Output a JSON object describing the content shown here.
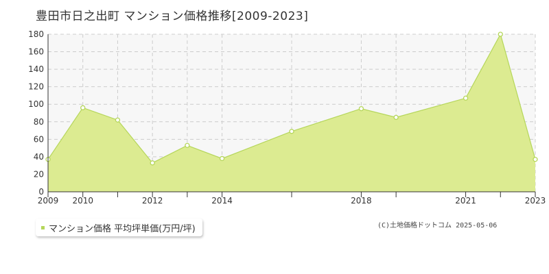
{
  "chart_data": {
    "type": "area",
    "title": "豊田市日之出町 マンション価格推移[2009-2023]",
    "x": [
      2009,
      2010,
      2011,
      2012,
      2013,
      2014,
      2016,
      2018,
      2019,
      2021,
      2022,
      2023
    ],
    "x_tick_labels": [
      "2009",
      "2010",
      "2012",
      "2014",
      "2018",
      "2021",
      "2023"
    ],
    "xlim": [
      2009,
      2023
    ],
    "ylim": [
      0,
      180
    ],
    "y_ticks": [
      0,
      20,
      40,
      60,
      80,
      100,
      120,
      140,
      160,
      180
    ],
    "grid": true,
    "series": [
      {
        "name": "マンション価格 平均坪単価(万円/坪)",
        "values": [
          37,
          96,
          82,
          33,
          53,
          38,
          69,
          95,
          85,
          107,
          180,
          37
        ],
        "color": "#b5d65a",
        "fill": "#dceb91"
      }
    ],
    "legend_position": "bottom-left"
  },
  "credit": "(C)土地価格ドットコム 2025-05-06"
}
